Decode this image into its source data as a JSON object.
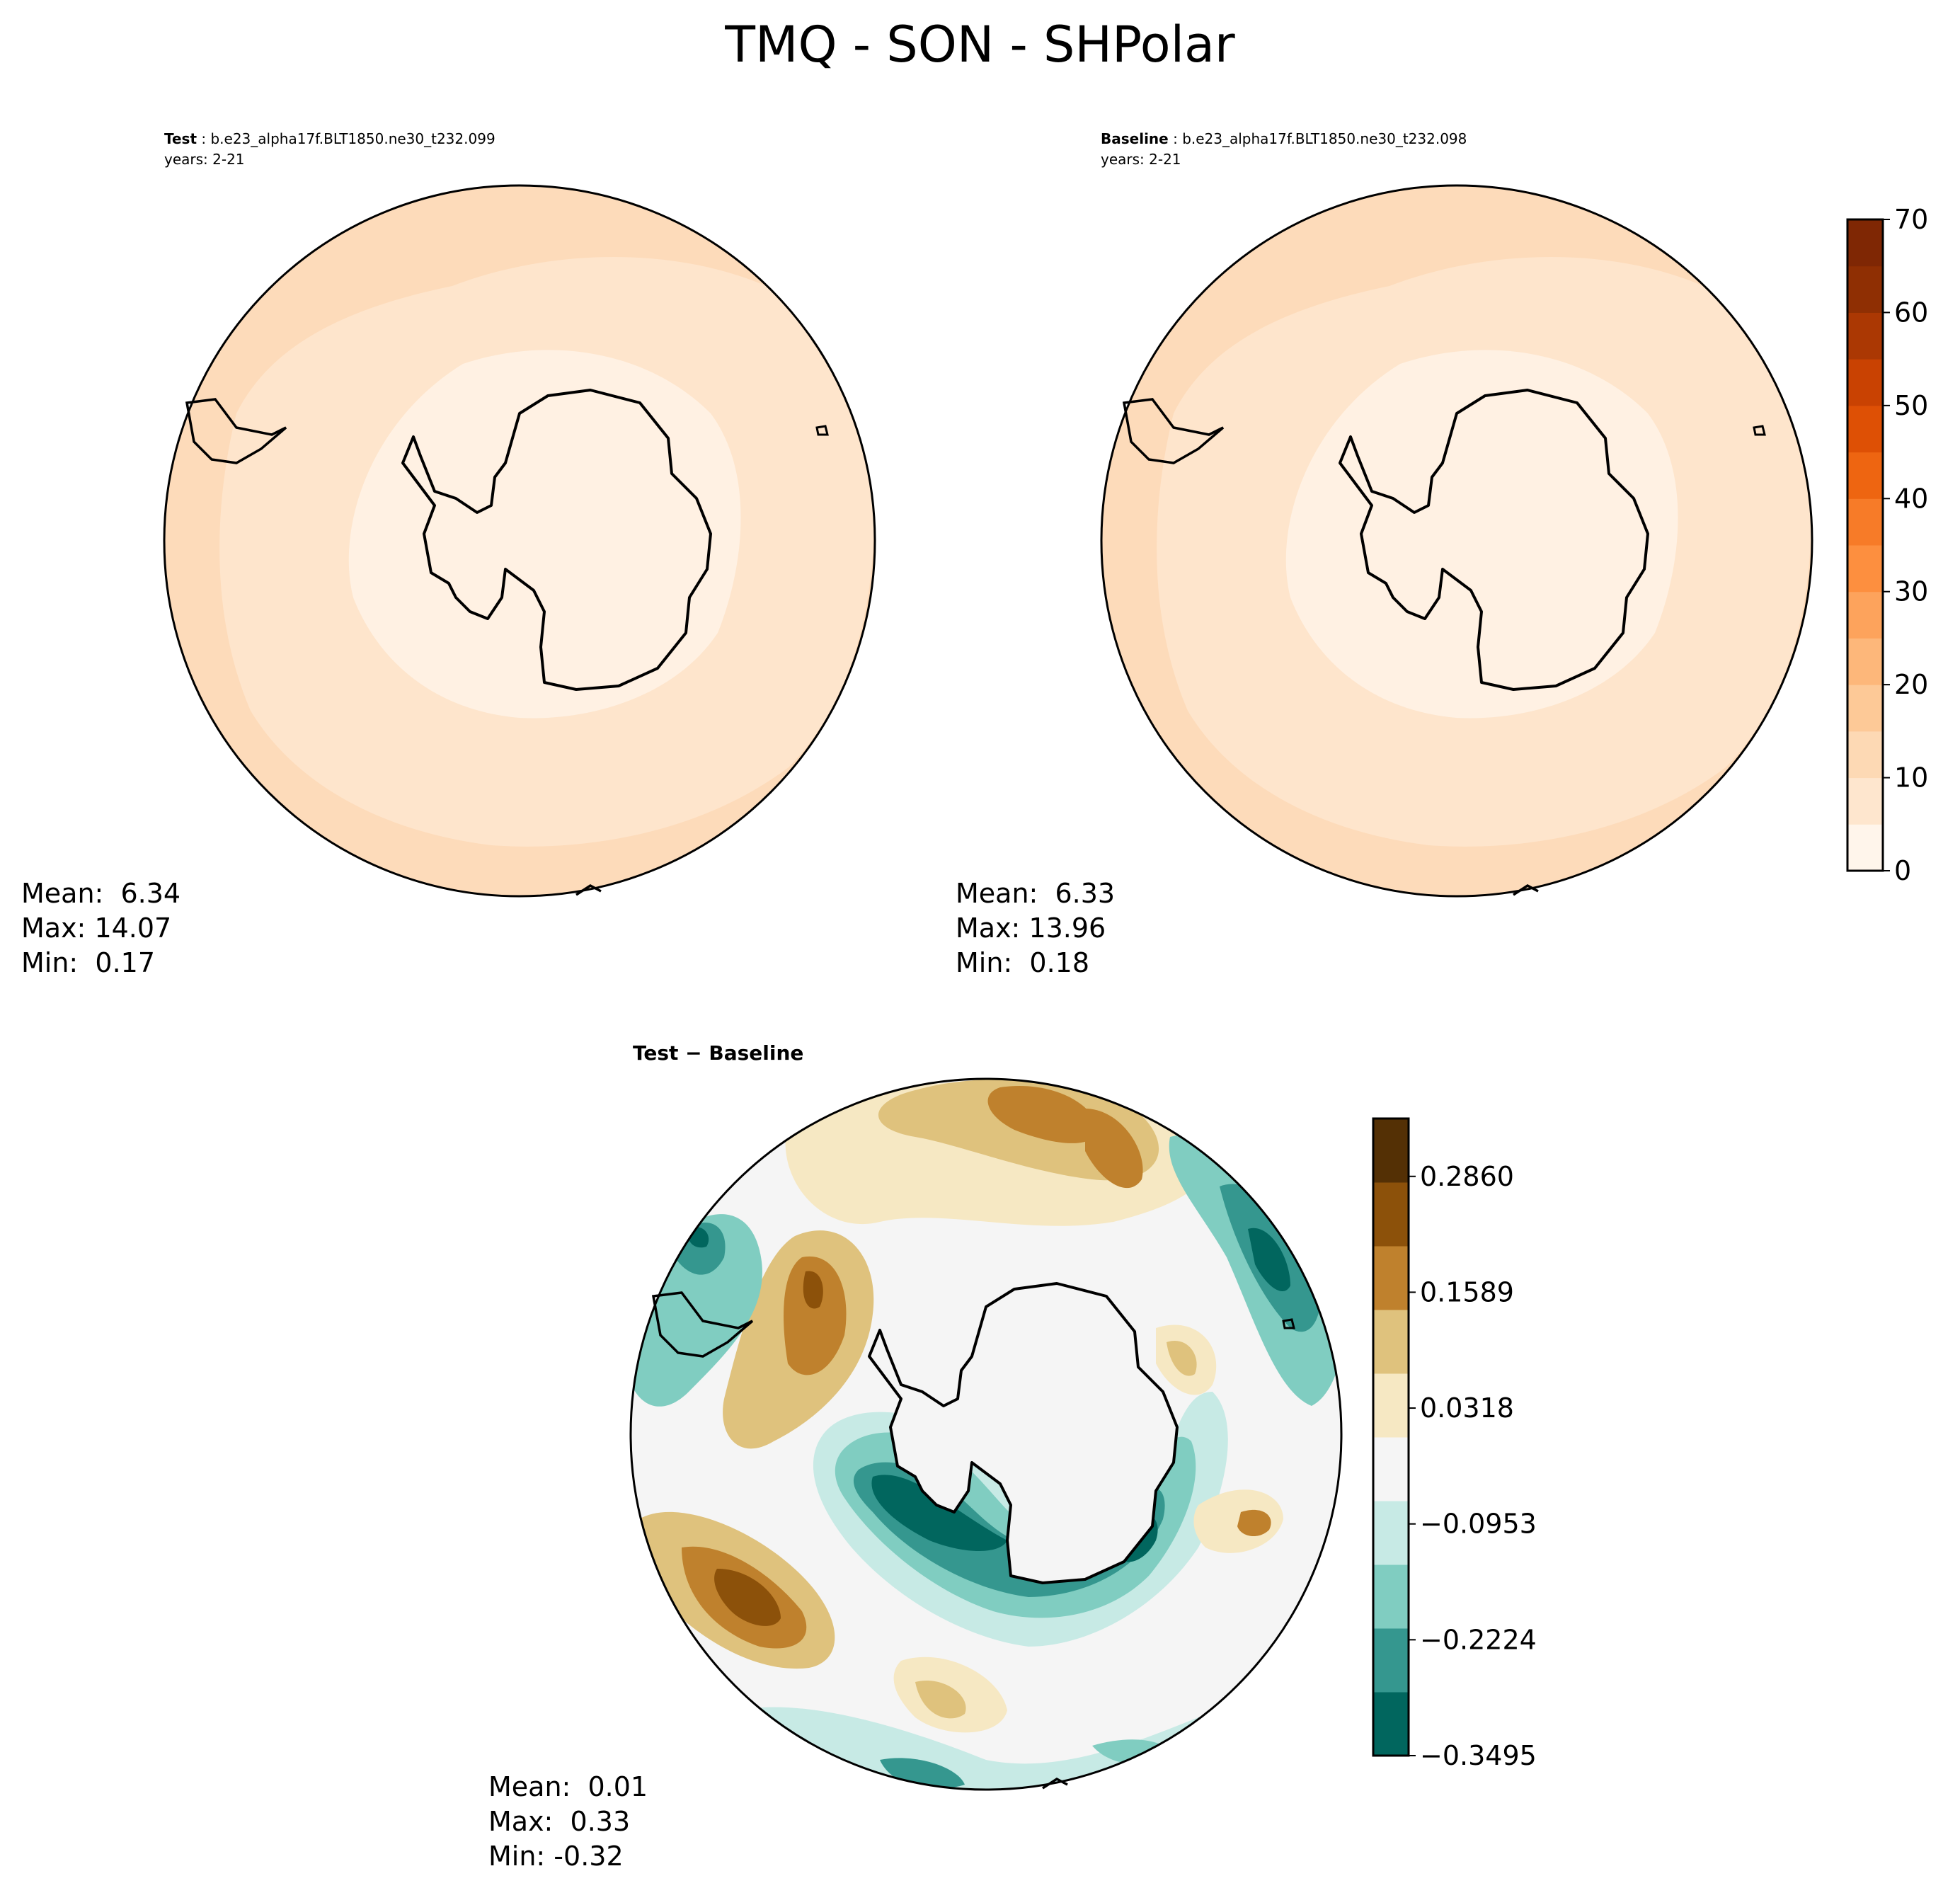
{
  "title": "TMQ - SON - SHPolar",
  "chart_data": [
    {
      "type": "heatmap",
      "name": "test",
      "label": "Test",
      "case": "b.e23_alpha17f.BLT1850.ne30_t232.099",
      "years": "years: 2-21",
      "stats": {
        "mean": "Mean:  6.34",
        "max": "Max: 14.07",
        "min": "Min:  0.17"
      }
    },
    {
      "type": "heatmap",
      "name": "baseline",
      "label": "Baseline",
      "case": "b.e23_alpha17f.BLT1850.ne30_t232.098",
      "years": "years: 2-21",
      "stats": {
        "mean": "Mean:  6.33",
        "max": "Max: 13.96",
        "min": "Min:  0.18"
      },
      "colorbar": {
        "range": [
          0,
          70
        ],
        "ticks": [
          "0",
          "10",
          "20",
          "30",
          "40",
          "50",
          "60",
          "70"
        ],
        "colors": [
          "#fff5eb",
          "#fee6ce",
          "#fdd9b4",
          "#fdc997",
          "#fdb77a",
          "#fda35c",
          "#fd8f3f",
          "#f77b28",
          "#ee6511",
          "#de5005",
          "#c94202",
          "#ab3803",
          "#8f2f03",
          "#7f2704"
        ]
      }
    },
    {
      "type": "heatmap",
      "name": "difference",
      "label": "Test − Baseline",
      "stats": {
        "mean": "Mean:  0.01",
        "max": "Max:  0.33",
        "min": "Min: -0.32"
      },
      "colorbar": {
        "range": [
          -0.3495,
          0.3495
        ],
        "ticks": [
          "0.2860",
          "0.1589",
          "0.0318",
          "−0.0953",
          "−0.2224",
          "−0.3495"
        ],
        "colors": [
          "#01665e",
          "#35978f",
          "#80cdc1",
          "#c7eae5",
          "#f5f5f5",
          "#f6e8c3",
          "#dfc27d",
          "#bf812d",
          "#8c510a",
          "#543005"
        ]
      }
    }
  ]
}
